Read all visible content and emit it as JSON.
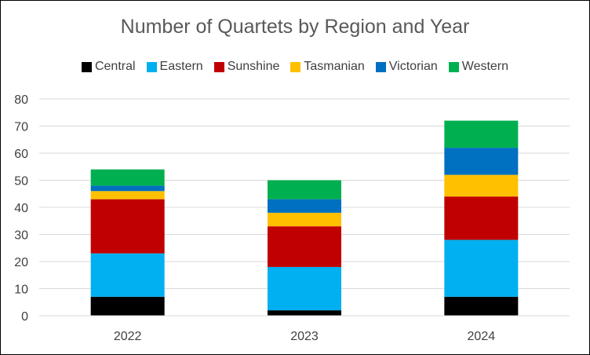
{
  "colors": {
    "Central": "#000000",
    "Eastern": "#00B0F0",
    "Sunshine": "#C00000",
    "Tasmanian": "#FFC000",
    "Victorian": "#0070C0",
    "Western": "#00B050",
    "grid": "#D9D9D9",
    "text": "#595959"
  },
  "chart_data": {
    "type": "bar",
    "stacked": true,
    "title": "Number of Quartets by Region and Year",
    "xlabel": "",
    "ylabel": "",
    "categories": [
      "2022",
      "2023",
      "2024"
    ],
    "ylim": [
      0,
      80
    ],
    "yticks": [
      0,
      10,
      20,
      30,
      40,
      50,
      60,
      70,
      80
    ],
    "grid": true,
    "legend_position": "top",
    "series": [
      {
        "name": "Central",
        "values": [
          7,
          2,
          7
        ]
      },
      {
        "name": "Eastern",
        "values": [
          16,
          16,
          21
        ]
      },
      {
        "name": "Sunshine",
        "values": [
          20,
          15,
          16
        ]
      },
      {
        "name": "Tasmanian",
        "values": [
          3,
          5,
          8
        ]
      },
      {
        "name": "Victorian",
        "values": [
          2,
          5,
          10
        ]
      },
      {
        "name": "Western",
        "values": [
          6,
          7,
          10
        ]
      }
    ]
  }
}
